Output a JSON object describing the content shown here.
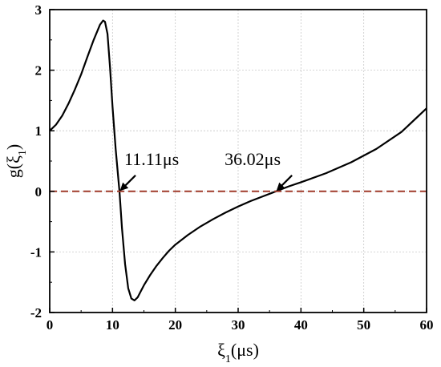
{
  "chart_data": {
    "type": "line",
    "title": "",
    "xlabel": "ξ1(μs)",
    "ylabel": "g(ξ1)",
    "xlim": [
      0,
      60
    ],
    "ylim": [
      -2,
      3
    ],
    "xticks": [
      0,
      10,
      20,
      30,
      40,
      50,
      60
    ],
    "yticks": [
      3,
      2,
      1,
      0,
      -1,
      -2
    ],
    "grid": true,
    "series": [
      {
        "color": "#000000",
        "style": "solid",
        "x": [
          0,
          1,
          2,
          3,
          4,
          5,
          6,
          7,
          8,
          8.5,
          8.8,
          9.2,
          9.6,
          10,
          10.5,
          11,
          11.11,
          11.5,
          12,
          12.5,
          13,
          13.5,
          14,
          14.5,
          15,
          16,
          17,
          18,
          19,
          20,
          22,
          24,
          26,
          28,
          30,
          32,
          34,
          36.02,
          38,
          40,
          44,
          48,
          52,
          56,
          60
        ],
        "y": [
          1.0,
          1.1,
          1.25,
          1.45,
          1.68,
          1.93,
          2.22,
          2.5,
          2.75,
          2.82,
          2.8,
          2.6,
          2.05,
          1.4,
          0.7,
          0.12,
          0.0,
          -0.6,
          -1.2,
          -1.6,
          -1.77,
          -1.8,
          -1.75,
          -1.65,
          -1.55,
          -1.38,
          -1.23,
          -1.1,
          -0.98,
          -0.88,
          -0.72,
          -0.58,
          -0.46,
          -0.35,
          -0.25,
          -0.16,
          -0.08,
          0.0,
          0.08,
          0.15,
          0.3,
          0.48,
          0.7,
          0.98,
          1.37
        ]
      },
      {
        "color": "#a03c2c",
        "style": "dashed",
        "x": [
          0,
          60
        ],
        "y": [
          0,
          0
        ]
      }
    ],
    "annotations": [
      {
        "text": "11.11μs",
        "x": 11.11,
        "y": 0
      },
      {
        "text": "36.02μs",
        "x": 36.02,
        "y": 0
      }
    ]
  }
}
